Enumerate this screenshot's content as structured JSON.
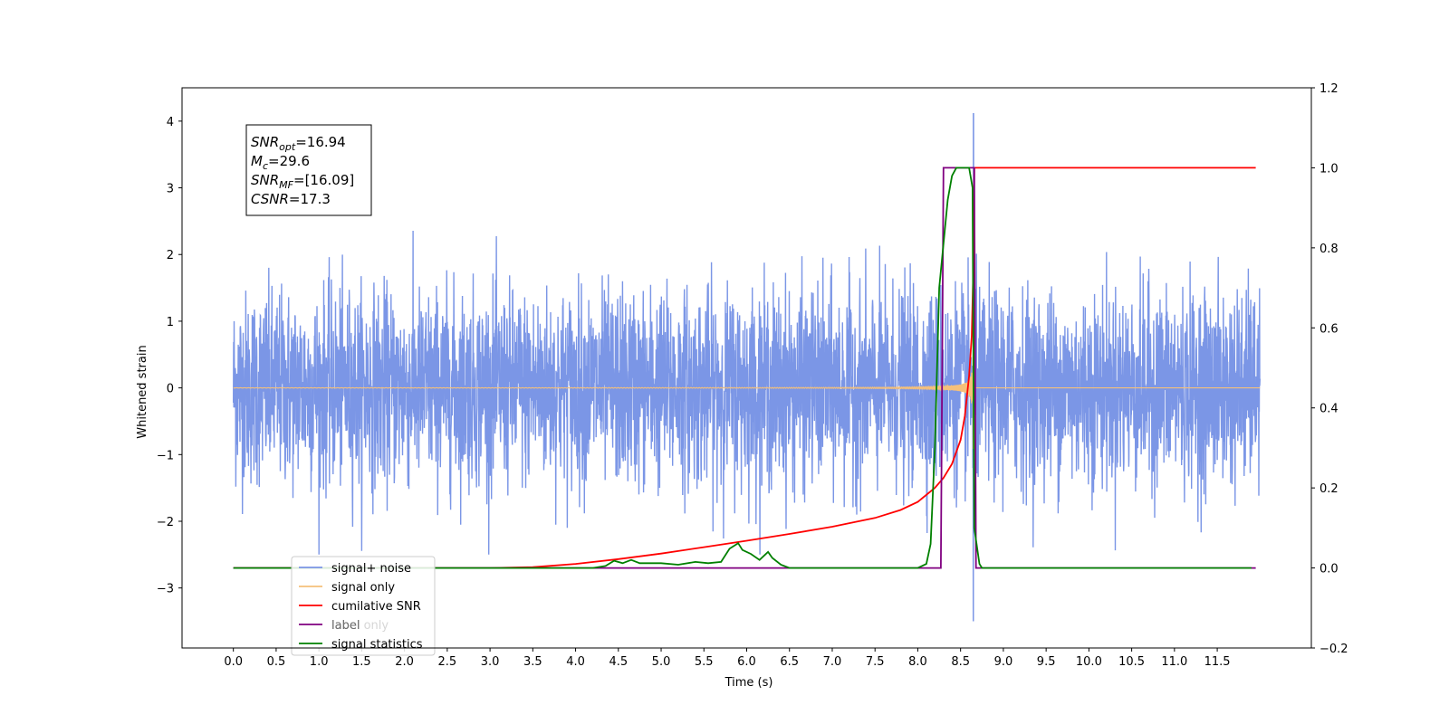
{
  "chart_data": {
    "type": "line",
    "title": "",
    "xlabel": "Time (s)",
    "ylabel": "Whitened strain",
    "xlim": [
      -0.6,
      12.6
    ],
    "ylim": [
      -3.9,
      4.5
    ],
    "ylim_right": [
      -0.2,
      1.2
    ],
    "xticks": [
      0.0,
      0.5,
      1.0,
      1.5,
      2.0,
      2.5,
      3.0,
      3.5,
      4.0,
      4.5,
      5.0,
      5.5,
      6.0,
      6.5,
      7.0,
      7.5,
      8.0,
      8.5,
      9.0,
      9.5,
      10.0,
      10.5,
      11.0,
      11.5
    ],
    "xtick_labels": [
      "0.0",
      "0.5",
      "1.0",
      "1.5",
      "2.0",
      "2.5",
      "3.0",
      "3.5",
      "4.0",
      "4.5",
      "5.0",
      "5.5",
      "6.0",
      "6.5",
      "7.0",
      "7.5",
      "8.0",
      "8.5",
      "9.0",
      "9.5",
      "10.0",
      "10.5",
      "11.0",
      "11.5"
    ],
    "yticks": [
      -3,
      -2,
      -1,
      0,
      1,
      2,
      3,
      4
    ],
    "ytick_labels": [
      "−3",
      "−2",
      "−1",
      "0",
      "1",
      "2",
      "3",
      "4"
    ],
    "yticks_right": [
      -0.2,
      0.0,
      0.2,
      0.4,
      0.6,
      0.8,
      1.0,
      1.2
    ],
    "ytick_labels_right": [
      "−0.2",
      "0.0",
      "0.2",
      "0.4",
      "0.6",
      "0.8",
      "1.0",
      "1.2"
    ],
    "grid": false,
    "legend_position": "lower-left",
    "annotation": {
      "lines": [
        {
          "main": "SNR",
          "sub": "opt",
          "rest": "=16.94"
        },
        {
          "main": "M",
          "sub": "c",
          "rest": "=29.6"
        },
        {
          "main": "SNR",
          "sub": "MF",
          "rest": "=[16.09]"
        },
        {
          "main": "CSNR",
          "sub": "",
          "rest": "=17.3"
        }
      ]
    },
    "series": [
      {
        "name": "signal+ noise",
        "axis": "left",
        "color": "#7b96e6",
        "description_kind": "noise",
        "x_range": [
          0.0,
          12.0
        ],
        "typical_amplitude": 1.5,
        "peak": {
          "x": 8.65,
          "ymax": 4.12,
          "ymin": -3.5
        }
      },
      {
        "name": "signal only",
        "axis": "left",
        "color": "#f5c07a",
        "description_kind": "chirp",
        "x_range": [
          0.0,
          12.0
        ],
        "merger_time": 8.65,
        "peak_amplitude": 1.9
      },
      {
        "name": "cumilative SNR",
        "axis": "right",
        "color": "#ff0000",
        "x": [
          0.0,
          3.0,
          3.5,
          4.0,
          4.5,
          5.0,
          5.5,
          6.0,
          6.5,
          7.0,
          7.5,
          7.8,
          8.0,
          8.2,
          8.3,
          8.4,
          8.5,
          8.55,
          8.6,
          8.63,
          8.65,
          8.66,
          11.95
        ],
        "y": [
          0.0,
          0.0,
          0.002,
          0.01,
          0.022,
          0.036,
          0.052,
          0.068,
          0.085,
          0.103,
          0.125,
          0.145,
          0.165,
          0.2,
          0.225,
          0.26,
          0.32,
          0.38,
          0.48,
          0.58,
          0.75,
          1.0,
          1.0
        ]
      },
      {
        "name": "label",
        "axis": "right",
        "color": "#800080",
        "x": [
          0.0,
          8.27,
          8.3,
          8.66,
          8.68,
          11.95
        ],
        "y": [
          0.0,
          0.0,
          1.0,
          1.0,
          0.0,
          0.0
        ]
      },
      {
        "name": "signal statistics",
        "axis": "right",
        "color": "#008000",
        "x": [
          0.0,
          4.2,
          4.35,
          4.45,
          4.55,
          4.65,
          4.75,
          4.85,
          5.0,
          5.2,
          5.4,
          5.55,
          5.7,
          5.8,
          5.9,
          5.95,
          6.05,
          6.15,
          6.25,
          6.3,
          6.4,
          6.5,
          6.6,
          7.5,
          8.0,
          8.1,
          8.15,
          8.2,
          8.25,
          8.35,
          8.4,
          8.45,
          8.5,
          8.55,
          8.6,
          8.64,
          8.66,
          8.72,
          8.75,
          11.9
        ],
        "y": [
          0.0,
          0.0,
          0.005,
          0.018,
          0.012,
          0.02,
          0.012,
          0.012,
          0.012,
          0.008,
          0.015,
          0.012,
          0.015,
          0.048,
          0.062,
          0.045,
          0.035,
          0.02,
          0.04,
          0.025,
          0.008,
          0.0,
          0.0,
          0.0,
          0.0,
          0.01,
          0.06,
          0.3,
          0.7,
          0.92,
          0.98,
          1.0,
          1.0,
          1.0,
          1.0,
          0.95,
          0.1,
          0.01,
          0.0,
          0.0
        ]
      }
    ],
    "legend_entries": [
      "signal+ noise",
      "signal only",
      "cumilative SNR",
      "label",
      "signal statistics"
    ],
    "legend_ghost_text": [
      "…",
      "label only"
    ]
  }
}
